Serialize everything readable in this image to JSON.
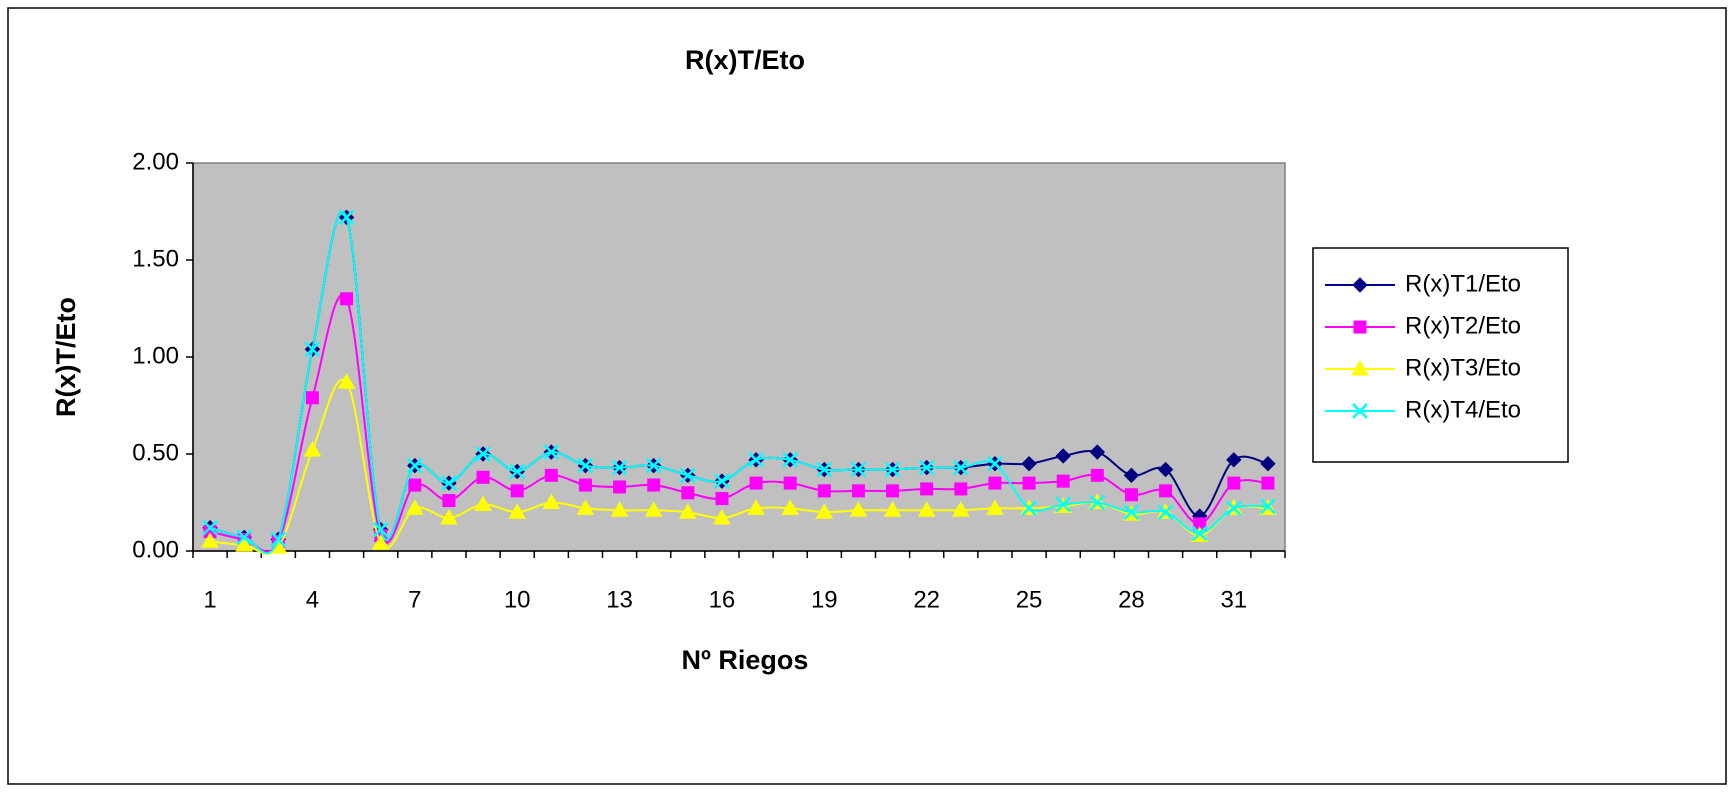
{
  "chart_data": {
    "type": "line",
    "title": "R(x)T/Eto",
    "x_label": "Nº Riegos",
    "y_label": "R(x)T/Eto",
    "categories": [
      "1",
      null,
      null,
      "4",
      null,
      null,
      "7",
      null,
      null,
      "10",
      null,
      null,
      "13",
      null,
      null,
      "16",
      null,
      null,
      "19",
      null,
      null,
      "22",
      null,
      null,
      "25",
      null,
      null,
      "28",
      null,
      null,
      "31",
      null
    ],
    "ylim": [
      0,
      2
    ],
    "yticks": [
      {
        "value": 0,
        "label": "0.00"
      },
      {
        "value": 0.5,
        "label": "0.50"
      },
      {
        "value": 1,
        "label": "1.00"
      },
      {
        "value": 1.5,
        "label": "1.50"
      },
      {
        "value": 2,
        "label": "2.00"
      }
    ],
    "plot_background": "#c0c0c0",
    "legend": "right",
    "series": [
      {
        "name": "R(x)T1/Eto",
        "color": "#000080",
        "marker": "diamond",
        "values": [
          0.12,
          0.07,
          0.06,
          1.04,
          1.72,
          0.11,
          0.44,
          0.35,
          0.5,
          0.41,
          0.51,
          0.44,
          0.43,
          0.44,
          0.39,
          0.36,
          0.47,
          0.47,
          0.42,
          0.42,
          0.42,
          0.43,
          0.43,
          0.45,
          0.45,
          0.49,
          0.51,
          0.39,
          0.42,
          0.18,
          0.47,
          0.45
        ]
      },
      {
        "name": "R(x)T2/Eto",
        "color": "#ff00ff",
        "marker": "square",
        "values": [
          0.1,
          0.06,
          0.05,
          0.79,
          1.3,
          0.08,
          0.34,
          0.26,
          0.38,
          0.31,
          0.39,
          0.34,
          0.33,
          0.34,
          0.3,
          0.27,
          0.35,
          0.35,
          0.31,
          0.31,
          0.31,
          0.32,
          0.32,
          0.35,
          0.35,
          0.36,
          0.39,
          0.29,
          0.31,
          0.14,
          0.35,
          0.35
        ]
      },
      {
        "name": "R(x)T3/Eto",
        "color": "#ffff00",
        "marker": "triangle",
        "values": [
          0.05,
          0.03,
          0.02,
          0.52,
          0.87,
          0.04,
          0.22,
          0.17,
          0.24,
          0.2,
          0.25,
          0.22,
          0.21,
          0.21,
          0.2,
          0.17,
          0.22,
          0.22,
          0.2,
          0.21,
          0.21,
          0.21,
          0.21,
          0.22,
          0.22,
          0.23,
          0.25,
          0.19,
          0.2,
          0.08,
          0.22,
          0.22
        ]
      },
      {
        "name": "R(x)T4/Eto",
        "color": "#00ffff",
        "marker": "x",
        "values": [
          0.12,
          0.07,
          0.06,
          1.04,
          1.72,
          0.11,
          0.44,
          0.35,
          0.5,
          0.41,
          0.51,
          0.44,
          0.43,
          0.44,
          0.39,
          0.36,
          0.47,
          0.47,
          0.42,
          0.42,
          0.42,
          0.43,
          0.43,
          0.45,
          0.22,
          0.24,
          0.25,
          0.2,
          0.2,
          0.09,
          0.22,
          0.23
        ]
      }
    ]
  }
}
